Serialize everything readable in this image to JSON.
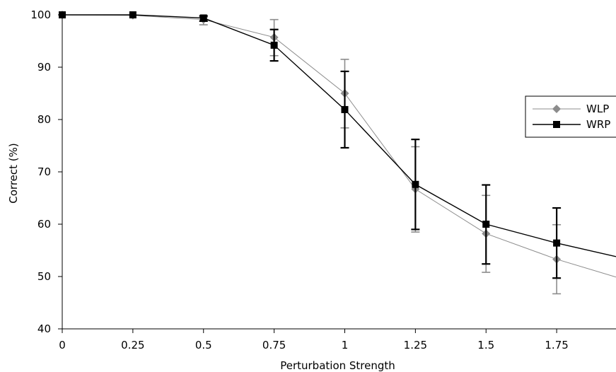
{
  "chart_data": {
    "type": "line",
    "xlabel": "Perturbation Strength",
    "ylabel": "Correct (%)",
    "xlim": [
      0,
      1.96
    ],
    "ylim": [
      40,
      100
    ],
    "x_ticks": [
      "0",
      "0.25",
      "0.5",
      "0.75",
      "1",
      "1.25",
      "1.5",
      "1.75"
    ],
    "y_ticks": [
      "40",
      "50",
      "60",
      "70",
      "80",
      "90",
      "100"
    ],
    "legend_position": "right",
    "grid": false,
    "series": [
      {
        "name": "WLP",
        "marker": "diamond",
        "color": "#8c8c8c",
        "points": [
          {
            "x": 0,
            "y": 100
          },
          {
            "x": 0.25,
            "y": 99.9
          },
          {
            "x": 0.5,
            "y": 99.1,
            "err_low": 98.1,
            "err_high": 99.6
          },
          {
            "x": 0.75,
            "y": 95.7,
            "err_low": 92.2,
            "err_high": 99.1
          },
          {
            "x": 1,
            "y": 85.0,
            "err_low": 78.4,
            "err_high": 91.5
          },
          {
            "x": 1.25,
            "y": 66.7,
            "err_low": 58.5,
            "err_high": 74.8
          },
          {
            "x": 1.5,
            "y": 58.2,
            "err_low": 50.8,
            "err_high": 65.5
          },
          {
            "x": 1.75,
            "y": 53.3,
            "err_low": 46.7,
            "err_high": 59.9
          }
        ],
        "tail": {
          "x": 1.96,
          "y": 49.9
        }
      },
      {
        "name": "WRP",
        "marker": "square",
        "color": "#000000",
        "points": [
          {
            "x": 0,
            "y": 100
          },
          {
            "x": 0.25,
            "y": 100
          },
          {
            "x": 0.5,
            "y": 99.4,
            "err_low": 98.8,
            "err_high": 99.8
          },
          {
            "x": 0.75,
            "y": 94.2,
            "err_low": 91.2,
            "err_high": 97.2
          },
          {
            "x": 1,
            "y": 81.9,
            "err_low": 74.6,
            "err_high": 89.2
          },
          {
            "x": 1.25,
            "y": 67.6,
            "err_low": 59.0,
            "err_high": 76.2
          },
          {
            "x": 1.5,
            "y": 60.0,
            "err_low": 52.4,
            "err_high": 67.5
          },
          {
            "x": 1.75,
            "y": 56.4,
            "err_low": 49.7,
            "err_high": 63.1
          }
        ],
        "tail": {
          "x": 1.96,
          "y": 53.8
        }
      }
    ]
  }
}
